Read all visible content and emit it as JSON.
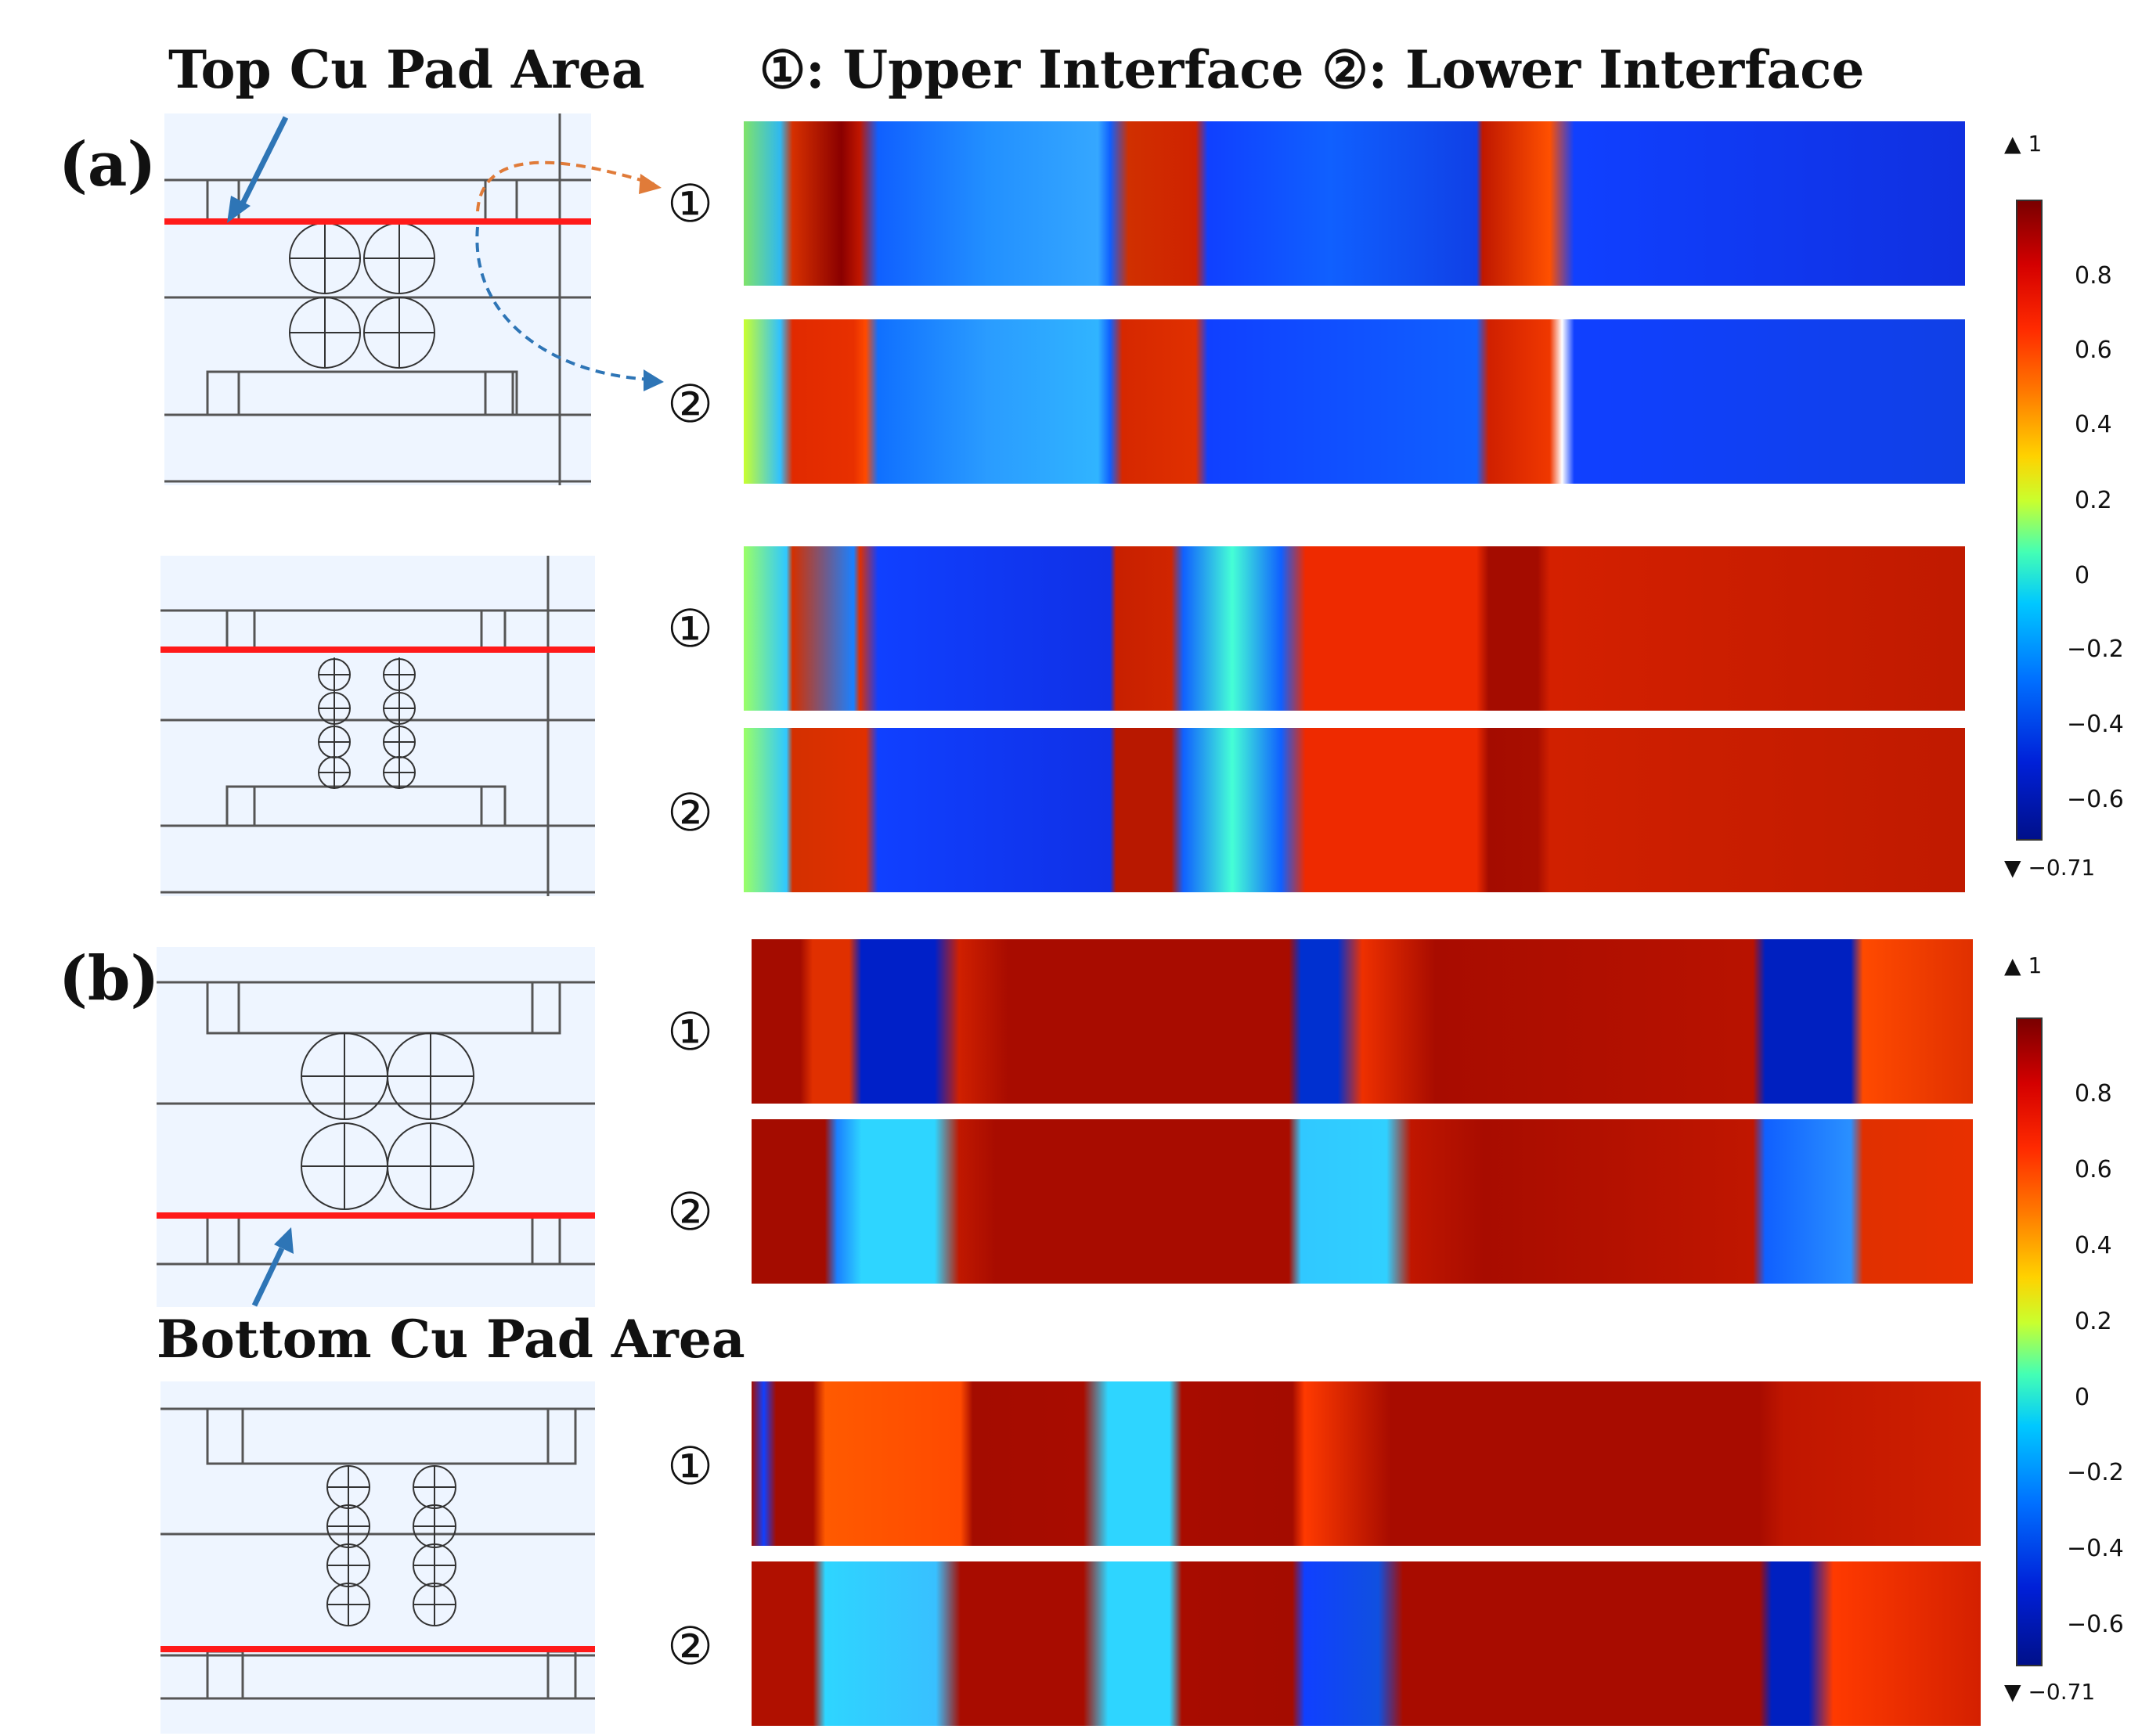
{
  "header": {
    "top_label": "Top Cu Pad Area",
    "bottom_label": "Bottom Cu Pad Area",
    "legend_text": "①: Upper Interface ②: Lower Interface"
  },
  "panels": {
    "a": "(a)",
    "b": "(b)"
  },
  "interfaces": {
    "upper": "①",
    "lower": "②"
  },
  "colorbar": {
    "max_label": "1",
    "min_label": "−0.71",
    "ticks": [
      "0.8",
      "0.6",
      "0.4",
      "0.2",
      "0",
      "−0.2",
      "−0.4",
      "−0.6"
    ]
  },
  "colors": {
    "interface_line": "#ff1a1a",
    "arrow_blue": "#2e75b6",
    "arrow_orange": "#e07b39",
    "diagram_bg": "#eef5ff"
  }
}
